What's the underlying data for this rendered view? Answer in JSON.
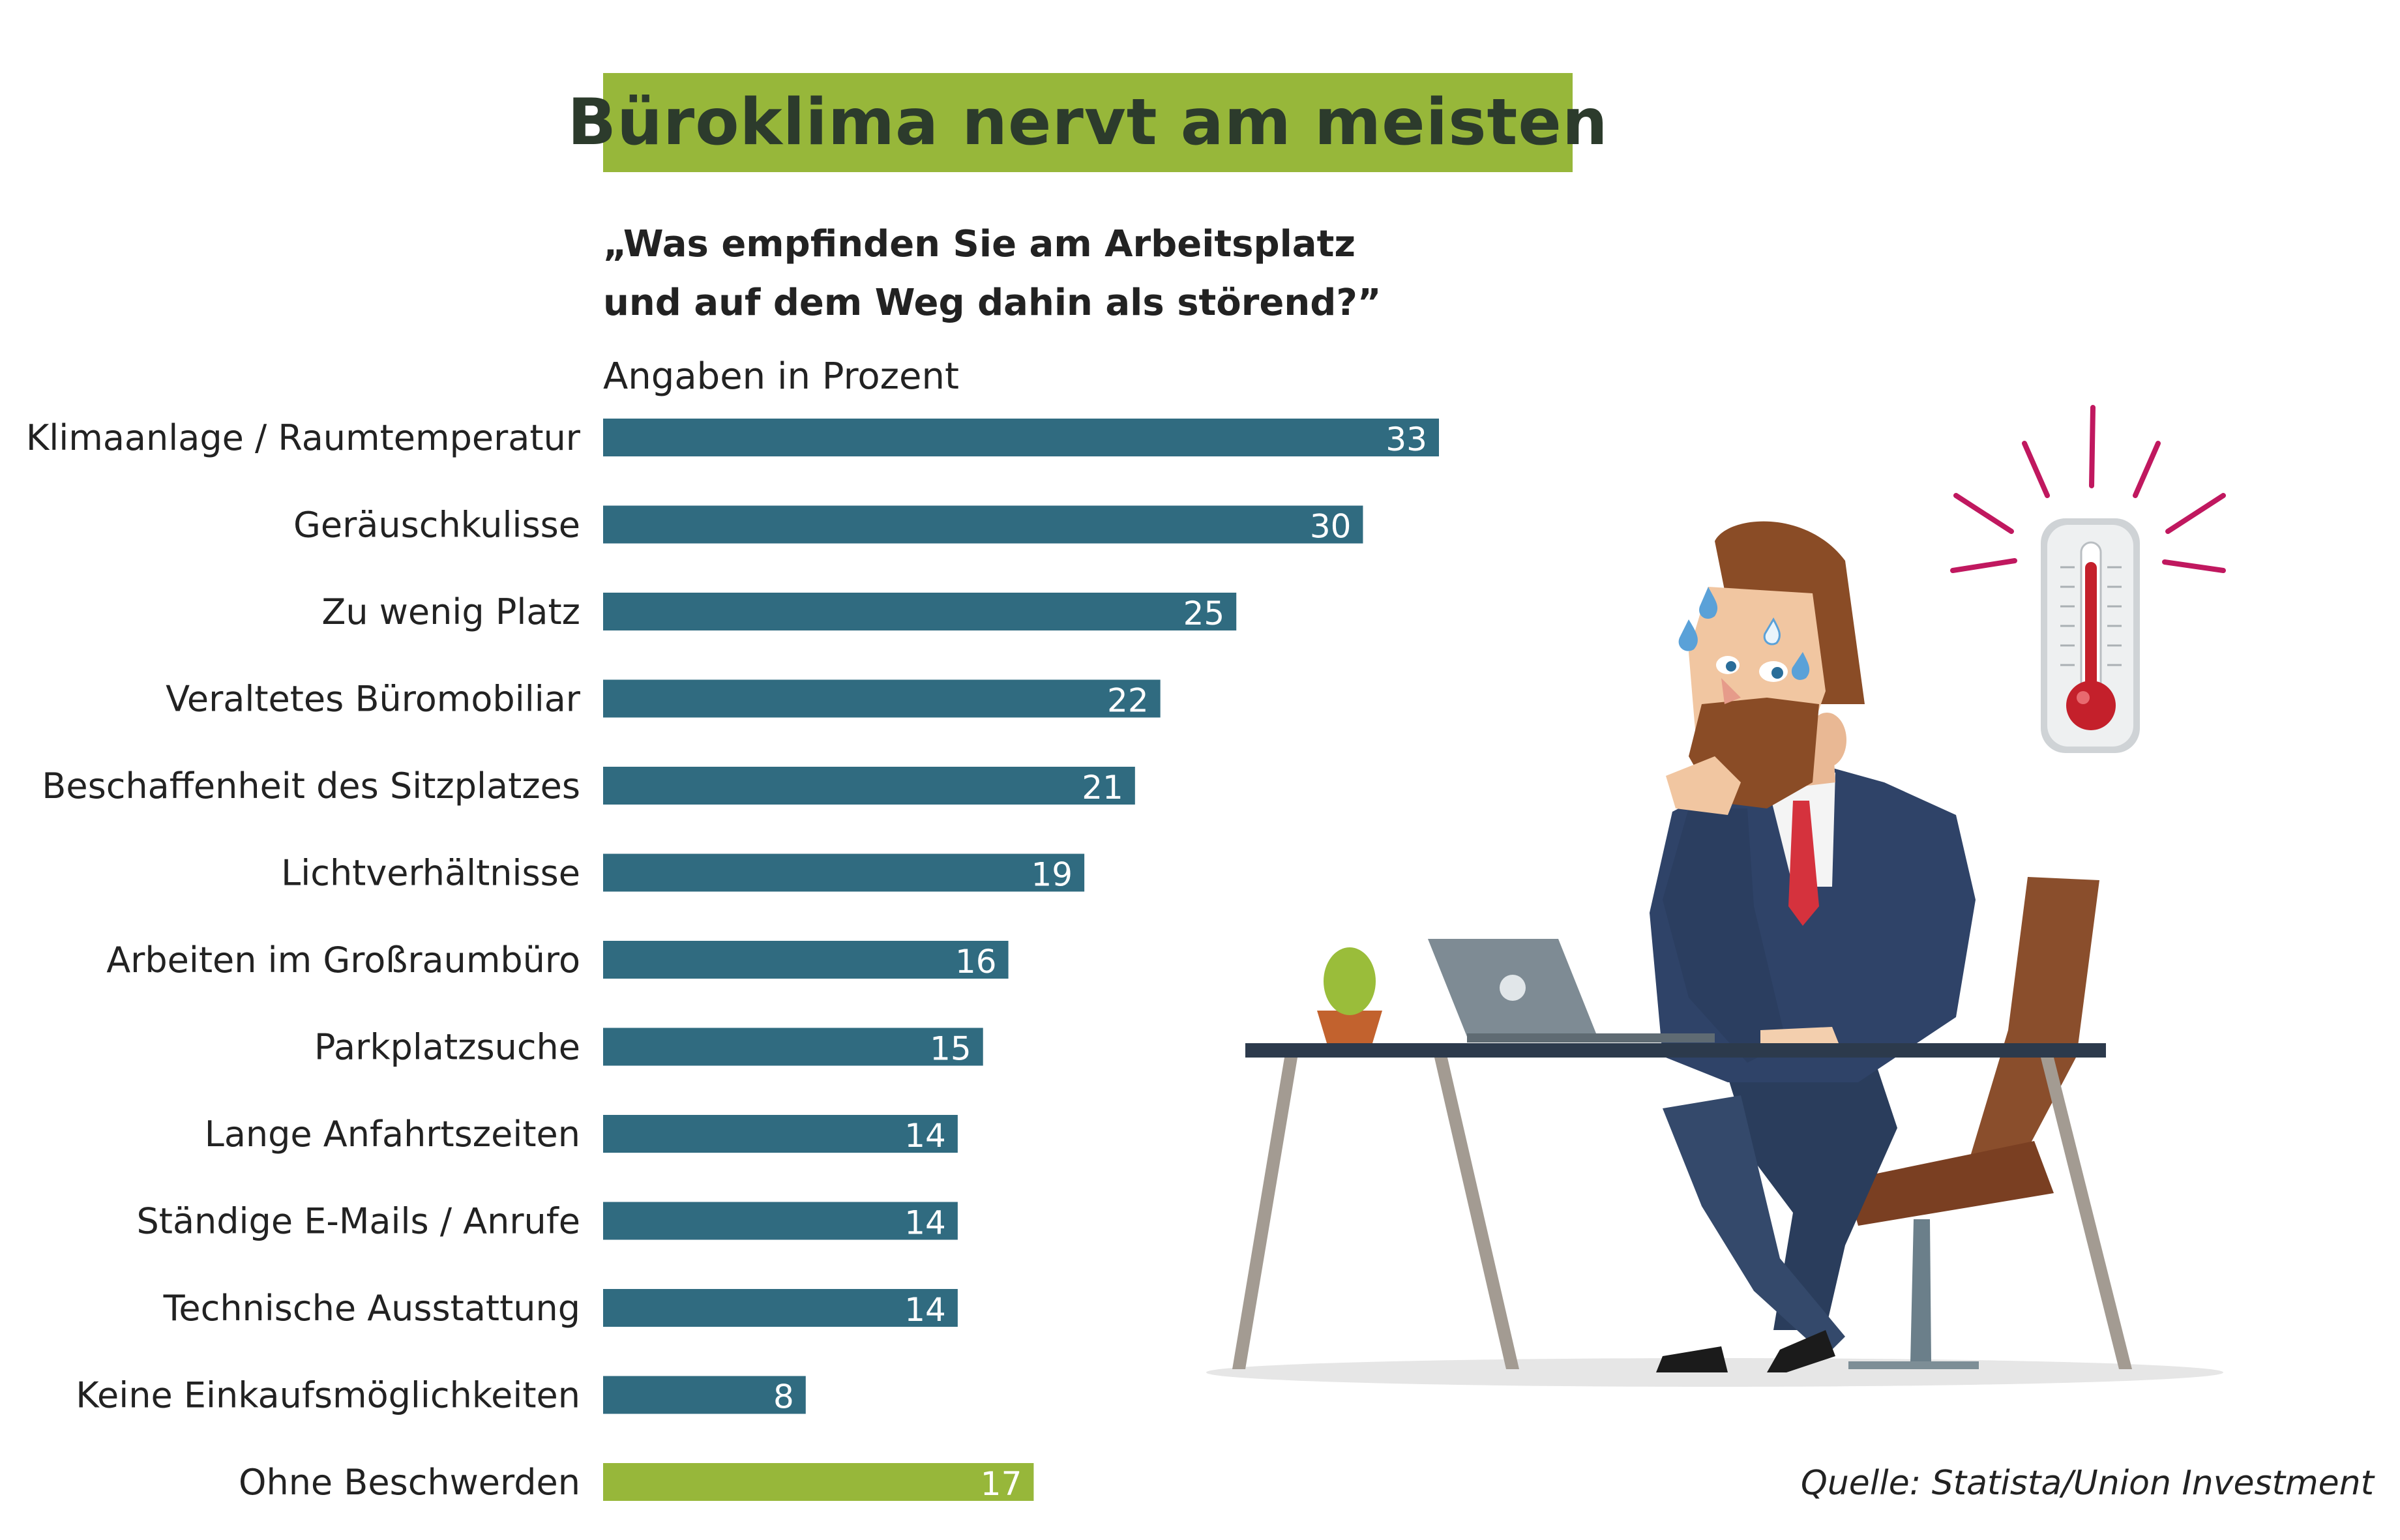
{
  "chart_data": {
    "type": "bar",
    "orientation": "horizontal",
    "title": "Büroklima nervt am meisten",
    "subtitle_line1": "„Was empfinden Sie am Arbeitsplatz",
    "subtitle_line2": "und auf dem Weg dahin als störend?”",
    "unit": "Angaben in Prozent",
    "categories": [
      "Klimaanlage / Raumtemperatur",
      "Geräuschkulisse",
      "Zu wenig Platz",
      "Veraltetes Büromobiliar",
      "Beschaffenheit des Sitzplatzes",
      "Lichtverhältnisse",
      "Arbeiten im Großraumbüro",
      "Parkplatzsuche",
      "Lange Anfahrtszeiten",
      "Ständige E-Mails / Anrufe",
      "Technische Ausstattung",
      "Keine Einkaufsmöglichkeiten",
      "Ohne Beschwerden"
    ],
    "values": [
      33,
      30,
      25,
      22,
      21,
      19,
      16,
      15,
      14,
      14,
      14,
      8,
      17
    ],
    "bar_colors": [
      "#306b80",
      "#306b80",
      "#306b80",
      "#306b80",
      "#306b80",
      "#306b80",
      "#306b80",
      "#306b80",
      "#306b80",
      "#306b80",
      "#306b80",
      "#306b80",
      "#97b73a"
    ],
    "xlim": [
      0,
      33
    ],
    "grid": false,
    "legend": "none"
  },
  "source": "Quelle: Statista/Union Investment",
  "colors": {
    "bar": "#306b80",
    "highlight_bar": "#97b73a",
    "title_bg": "#97b73a",
    "title_text": "#2c3b2c"
  },
  "illustration": "businessman-sweating-at-desk-with-thermometer"
}
